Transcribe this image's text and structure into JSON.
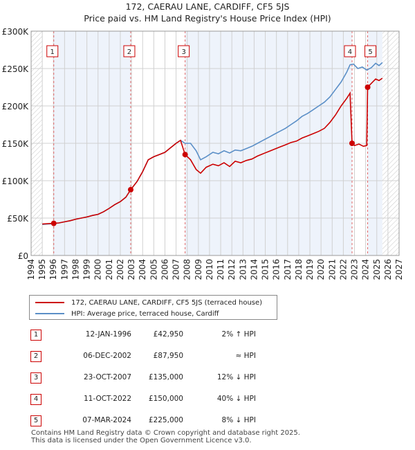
{
  "chart_data": {
    "type": "line",
    "title": "172, CAERAU LANE, CARDIFF, CF5 5JS",
    "subtitle": "Price paid vs. HM Land Registry's House Price Index (HPI)",
    "xlim": [
      1994,
      2027
    ],
    "ylim": [
      0,
      300000
    ],
    "x_ticks": [
      1994,
      1995,
      1996,
      1997,
      1998,
      1999,
      2000,
      2001,
      2002,
      2003,
      2004,
      2005,
      2006,
      2007,
      2008,
      2009,
      2010,
      2011,
      2012,
      2013,
      2014,
      2015,
      2016,
      2017,
      2018,
      2019,
      2020,
      2021,
      2022,
      2023,
      2024,
      2025,
      2026,
      2027
    ],
    "y_ticks": [
      {
        "value": 0,
        "label": "£0"
      },
      {
        "value": 50000,
        "label": "£50K"
      },
      {
        "value": 100000,
        "label": "£100K"
      },
      {
        "value": 150000,
        "label": "£150K"
      },
      {
        "value": 200000,
        "label": "£200K"
      },
      {
        "value": 250000,
        "label": "£250K"
      },
      {
        "value": 300000,
        "label": "£300K"
      }
    ],
    "series": [
      {
        "name": "172, CAERAU LANE, CARDIFF, CF5 5JS (terraced house)",
        "color": "#cc0000",
        "points": [
          [
            1995.0,
            42000
          ],
          [
            1995.5,
            42500
          ],
          [
            1996.03,
            42950
          ],
          [
            1996.5,
            43500
          ],
          [
            1997,
            45000
          ],
          [
            1997.5,
            46500
          ],
          [
            1998,
            48500
          ],
          [
            1998.5,
            50000
          ],
          [
            1999,
            51500
          ],
          [
            1999.5,
            53500
          ],
          [
            2000,
            55000
          ],
          [
            2000.5,
            58500
          ],
          [
            2001,
            63000
          ],
          [
            2001.5,
            68000
          ],
          [
            2002,
            72000
          ],
          [
            2002.5,
            78000
          ],
          [
            2002.93,
            87950
          ],
          [
            2003.5,
            99000
          ],
          [
            2004,
            112000
          ],
          [
            2004.5,
            128000
          ],
          [
            2005,
            132000
          ],
          [
            2005.5,
            135000
          ],
          [
            2006,
            138000
          ],
          [
            2006.5,
            144000
          ],
          [
            2007,
            150000
          ],
          [
            2007.4,
            154000
          ],
          [
            2007.81,
            135000
          ],
          [
            2008.3,
            128000
          ],
          [
            2008.8,
            115000
          ],
          [
            2009.2,
            110000
          ],
          [
            2009.7,
            118000
          ],
          [
            2010.3,
            122000
          ],
          [
            2010.8,
            120000
          ],
          [
            2011.3,
            124000
          ],
          [
            2011.8,
            119000
          ],
          [
            2012.3,
            126000
          ],
          [
            2012.8,
            124000
          ],
          [
            2013.3,
            127000
          ],
          [
            2013.8,
            129000
          ],
          [
            2014.3,
            133000
          ],
          [
            2014.8,
            136000
          ],
          [
            2015.3,
            139000
          ],
          [
            2015.8,
            142000
          ],
          [
            2016.3,
            145000
          ],
          [
            2016.8,
            148000
          ],
          [
            2017.3,
            151000
          ],
          [
            2017.8,
            153000
          ],
          [
            2018.3,
            157000
          ],
          [
            2018.8,
            160000
          ],
          [
            2019.3,
            163000
          ],
          [
            2019.8,
            166000
          ],
          [
            2020.3,
            170000
          ],
          [
            2020.8,
            178000
          ],
          [
            2021.3,
            188000
          ],
          [
            2021.8,
            200000
          ],
          [
            2022.3,
            210000
          ],
          [
            2022.6,
            217000
          ],
          [
            2022.78,
            150000
          ],
          [
            2023.0,
            147000
          ],
          [
            2023.4,
            149000
          ],
          [
            2023.8,
            146000
          ],
          [
            2024.1,
            147000
          ],
          [
            2024.18,
            225000
          ],
          [
            2024.5,
            230000
          ],
          [
            2024.9,
            236000
          ],
          [
            2025.2,
            234000
          ],
          [
            2025.5,
            237000
          ]
        ]
      },
      {
        "name": "HPI: Average price, terraced house, Cardiff",
        "color": "#5b8fc7",
        "points": [
          [
            1995.0,
            41500
          ],
          [
            1995.5,
            42000
          ],
          [
            1996.0,
            42500
          ],
          [
            1996.5,
            43500
          ],
          [
            1997,
            45000
          ],
          [
            1997.5,
            46500
          ],
          [
            1998,
            48500
          ],
          [
            1998.5,
            50000
          ],
          [
            1999,
            51500
          ],
          [
            1999.5,
            53500
          ],
          [
            2000,
            55000
          ],
          [
            2000.5,
            58500
          ],
          [
            2001,
            63000
          ],
          [
            2001.5,
            68000
          ],
          [
            2002,
            72000
          ],
          [
            2002.5,
            78000
          ],
          [
            2002.93,
            87950
          ],
          [
            2003.5,
            99000
          ],
          [
            2004,
            112000
          ],
          [
            2004.5,
            128000
          ],
          [
            2005,
            132000
          ],
          [
            2005.5,
            135000
          ],
          [
            2006,
            138000
          ],
          [
            2006.5,
            144000
          ],
          [
            2007,
            150000
          ],
          [
            2007.4,
            154000
          ],
          [
            2007.8,
            150000
          ],
          [
            2008.3,
            150000
          ],
          [
            2008.8,
            140000
          ],
          [
            2009.2,
            128000
          ],
          [
            2009.7,
            132000
          ],
          [
            2010.3,
            138000
          ],
          [
            2010.8,
            136000
          ],
          [
            2011.3,
            140000
          ],
          [
            2011.8,
            137000
          ],
          [
            2012.3,
            141000
          ],
          [
            2012.8,
            140000
          ],
          [
            2013.3,
            143000
          ],
          [
            2013.8,
            146000
          ],
          [
            2014.3,
            150000
          ],
          [
            2014.8,
            154000
          ],
          [
            2015.3,
            158000
          ],
          [
            2015.8,
            162000
          ],
          [
            2016.3,
            166000
          ],
          [
            2016.8,
            170000
          ],
          [
            2017.3,
            175000
          ],
          [
            2017.8,
            180000
          ],
          [
            2018.3,
            186000
          ],
          [
            2018.8,
            190000
          ],
          [
            2019.3,
            195000
          ],
          [
            2019.8,
            200000
          ],
          [
            2020.3,
            205000
          ],
          [
            2020.8,
            212000
          ],
          [
            2021.3,
            222000
          ],
          [
            2021.8,
            232000
          ],
          [
            2022.3,
            245000
          ],
          [
            2022.6,
            255000
          ],
          [
            2022.9,
            256000
          ],
          [
            2023.3,
            250000
          ],
          [
            2023.7,
            252000
          ],
          [
            2024.1,
            248000
          ],
          [
            2024.5,
            251000
          ],
          [
            2024.9,
            257000
          ],
          [
            2025.2,
            254000
          ],
          [
            2025.5,
            258000
          ]
        ]
      }
    ],
    "sales": [
      {
        "num": "1",
        "x": 1996.03,
        "price": 42950
      },
      {
        "num": "2",
        "x": 2002.93,
        "price": 87950
      },
      {
        "num": "3",
        "x": 2007.81,
        "price": 135000
      },
      {
        "num": "4",
        "x": 2022.78,
        "price": 150000
      },
      {
        "num": "5",
        "x": 2024.18,
        "price": 225000
      }
    ],
    "hatch_ranges": [
      [
        1994,
        1995
      ],
      [
        2025.5,
        2027
      ]
    ]
  },
  "legend": {
    "property": "172, CAERAU LANE, CARDIFF, CF5 5JS (terraced house)",
    "hpi": "HPI: Average price, terraced house, Cardiff"
  },
  "table": [
    {
      "num": "1",
      "date": "12-JAN-1996",
      "price": "£42,950",
      "hpi": "2% ↑ HPI"
    },
    {
      "num": "2",
      "date": "06-DEC-2002",
      "price": "£87,950",
      "hpi": "≈ HPI"
    },
    {
      "num": "3",
      "date": "23-OCT-2007",
      "price": "£135,000",
      "hpi": "12% ↓ HPI"
    },
    {
      "num": "4",
      "date": "11-OCT-2022",
      "price": "£150,000",
      "hpi": "40% ↓ HPI"
    },
    {
      "num": "5",
      "date": "07-MAR-2024",
      "price": "£225,000",
      "hpi": "8% ↓ HPI"
    }
  ],
  "footer": {
    "line1": "Contains HM Land Registry data © Crown copyright and database right 2025.",
    "line2": "This data is licensed under the Open Government Licence v3.0."
  },
  "colors": {
    "property": "#cc0000",
    "hpi": "#5b8fc7",
    "grid": "#d0d0d0",
    "plot_bg": "#eef3fb"
  }
}
